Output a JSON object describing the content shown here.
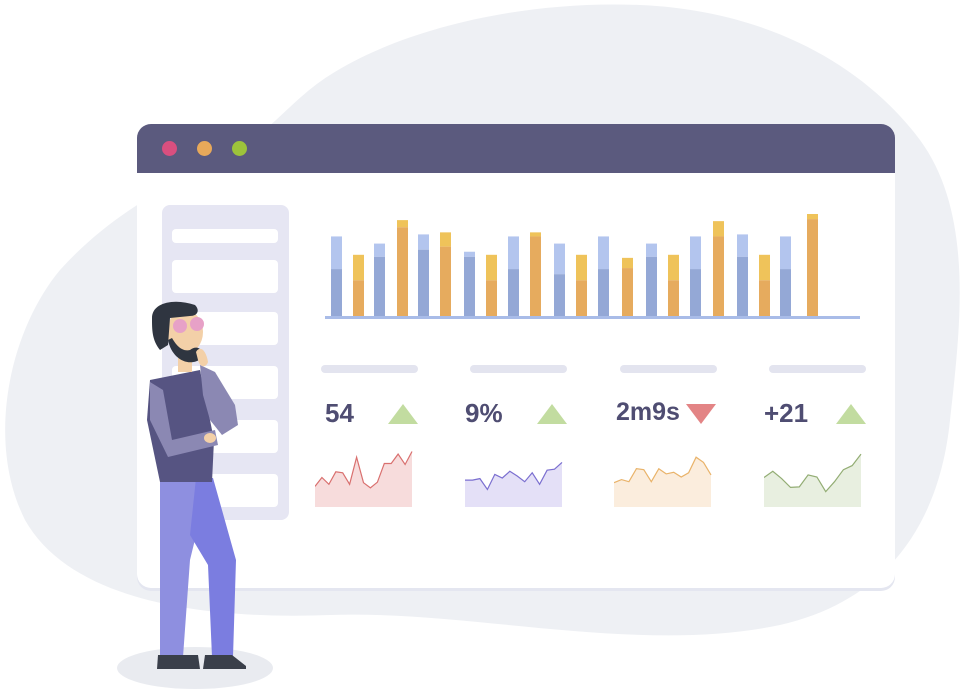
{
  "window": {
    "controls": [
      {
        "name": "close",
        "color": "#d94f7f"
      },
      {
        "name": "minimize",
        "color": "#e8a95a"
      },
      {
        "name": "maximize",
        "color": "#9dc33b"
      }
    ]
  },
  "chart_data": {
    "type": "bar",
    "stacked": true,
    "ylim": [
      0,
      100
    ],
    "grid": false,
    "colors": {
      "blue": [
        "#94a8d6",
        "#b3c5ee"
      ],
      "orange": [
        "#e6ab5e",
        "#efc35a"
      ]
    },
    "bars": [
      {
        "color": "blue",
        "lower": 46,
        "total": 78
      },
      {
        "color": "orange",
        "lower": 35,
        "total": 60
      },
      {
        "color": "blue",
        "lower": 58,
        "total": 71
      },
      {
        "color": "orange",
        "lower": 87,
        "total": 94
      },
      {
        "color": "blue",
        "lower": 65,
        "total": 80
      },
      {
        "color": "orange",
        "lower": 68,
        "total": 82
      },
      {
        "color": "blue",
        "lower": 58,
        "total": 63
      },
      {
        "color": "orange",
        "lower": 35,
        "total": 60
      },
      {
        "color": "blue",
        "lower": 46,
        "total": 78
      },
      {
        "color": "orange",
        "lower": 78,
        "total": 82
      },
      {
        "color": "blue",
        "lower": 41,
        "total": 71
      },
      {
        "color": "orange",
        "lower": 35,
        "total": 60
      },
      {
        "color": "blue",
        "lower": 46,
        "total": 78
      },
      {
        "color": "orange",
        "lower": 47,
        "total": 57
      },
      {
        "color": "blue",
        "lower": 58,
        "total": 71
      },
      {
        "color": "orange",
        "lower": 35,
        "total": 60
      },
      {
        "color": "blue",
        "lower": 46,
        "total": 78
      },
      {
        "color": "orange",
        "lower": 78,
        "total": 93
      },
      {
        "color": "blue",
        "lower": 58,
        "total": 80
      },
      {
        "color": "orange",
        "lower": 35,
        "total": 60
      },
      {
        "color": "blue",
        "lower": 46,
        "total": 78
      },
      {
        "color": "orange",
        "lower": 95,
        "total": 100
      }
    ]
  },
  "metrics": [
    {
      "value": "54",
      "trend": "up",
      "trend_color": "#c2dca0",
      "line_color": "#d9706f",
      "fill_color": "#f7dcdc",
      "spark": [
        32,
        49,
        36,
        60,
        58,
        36,
        88,
        39,
        29,
        40,
        76,
        76,
        94,
        74,
        99
      ]
    },
    {
      "value": "9%",
      "trend": "up",
      "trend_color": "#c2dca0",
      "line_color": "#7b6fd0",
      "fill_color": "#e4e0f7",
      "spark": [
        44,
        44,
        47,
        26,
        55,
        48,
        61,
        52,
        41,
        58,
        36,
        63,
        65,
        78
      ]
    },
    {
      "value": "2m9s",
      "trend": "down",
      "trend_color": "#e38485",
      "line_color": "#e9b36a",
      "fill_color": "#fbeddd",
      "spark": [
        39,
        45,
        41,
        66,
        64,
        41,
        66,
        56,
        59,
        50,
        58,
        88,
        78,
        54
      ]
    },
    {
      "value": "+21",
      "trend": "up",
      "trend_color": "#c2dca0",
      "line_color": "#93ad74",
      "fill_color": "#e8efe0",
      "spark": [
        49,
        61,
        47,
        30,
        31,
        54,
        50,
        22,
        41,
        64,
        72,
        94
      ]
    }
  ]
}
